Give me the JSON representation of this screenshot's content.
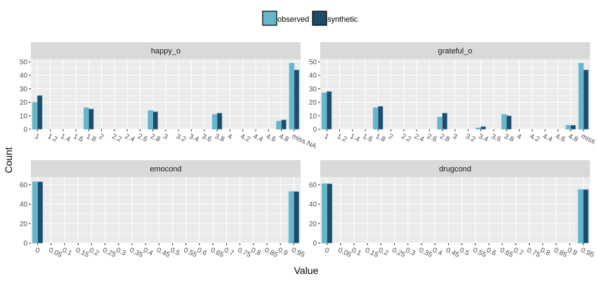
{
  "colors": {
    "observed": "#67b7cc",
    "synthetic": "#1f4a6a",
    "panel_bg": "#ebebeb",
    "strip_bg": "#d9d9d9",
    "grid": "#ffffff"
  },
  "legend": {
    "position": "top",
    "items": [
      {
        "label": "observed",
        "color_key": "observed"
      },
      {
        "label": "synthetic",
        "color_key": "synthetic"
      }
    ]
  },
  "axis_titles": {
    "x": "Value",
    "y": "Count"
  },
  "chart_data": [
    {
      "type": "bar",
      "title": "happy_o",
      "categories": [
        "1",
        "1.2",
        "1.4",
        "1.6",
        "1.8",
        "2",
        "2.2",
        "2.4",
        "2.6",
        "2.8",
        "3",
        "3.2",
        "3.4",
        "3.6",
        "3.8",
        "4",
        "4.2",
        "4.4",
        "4.6",
        "4.8",
        "miss.NA"
      ],
      "series": [
        {
          "name": "observed",
          "values": [
            20,
            0,
            0,
            0,
            16,
            0,
            0,
            0,
            0,
            14,
            0,
            0,
            0,
            0,
            11,
            0,
            0,
            0,
            0,
            6,
            49
          ]
        },
        {
          "name": "synthetic",
          "values": [
            25,
            0,
            0,
            0,
            15,
            0,
            0,
            0,
            0,
            13,
            0,
            0,
            0,
            0,
            12,
            0,
            0,
            0,
            0,
            7,
            44
          ]
        }
      ],
      "ylim": [
        0,
        50
      ],
      "yticks": [
        0,
        10,
        20,
        30,
        40,
        50
      ]
    },
    {
      "type": "bar",
      "title": "grateful_o",
      "categories": [
        "1",
        "1.2",
        "1.4",
        "1.6",
        "1.8",
        "2",
        "2.2",
        "2.4",
        "2.6",
        "2.8",
        "3",
        "3.2",
        "3.4",
        "3.6",
        "3.8",
        "4",
        "4.2",
        "4.4",
        "4.6",
        "4.8",
        "miss.NA"
      ],
      "category_tick_labels": [
        "1",
        "1.2",
        "1.4",
        "1.6",
        "1.8",
        "2",
        "2.2",
        "2.4",
        "2.6",
        "2.8",
        "3",
        "3.2",
        "3.4",
        "3.6",
        "3.8",
        "4",
        "4.2",
        "4.4",
        "4.6",
        "4.8",
        "miss"
      ],
      "series": [
        {
          "name": "observed",
          "values": [
            27,
            0,
            0,
            0,
            16,
            0,
            0,
            0,
            0,
            9,
            0,
            0,
            1,
            0,
            11,
            0,
            0,
            0,
            0,
            3,
            49
          ]
        },
        {
          "name": "synthetic",
          "values": [
            28,
            0,
            0,
            0,
            17,
            0,
            0,
            0,
            0,
            12,
            0,
            0,
            2,
            0,
            10,
            0,
            0,
            0,
            0,
            3,
            44
          ]
        }
      ],
      "ylim": [
        0,
        50
      ],
      "yticks": [
        0,
        10,
        20,
        30,
        40,
        50
      ]
    },
    {
      "type": "bar",
      "title": "emocond",
      "categories": [
        "0",
        "0.05",
        "0.1",
        "0.15",
        "0.2",
        "0.25",
        "0.3",
        "0.35",
        "0.4",
        "0.45",
        "0.5",
        "0.55",
        "0.6",
        "0.65",
        "0.7",
        "0.75",
        "0.8",
        "0.85",
        "0.9",
        "0.95"
      ],
      "series": [
        {
          "name": "observed",
          "values": [
            63,
            0,
            0,
            0,
            0,
            0,
            0,
            0,
            0,
            0,
            0,
            0,
            0,
            0,
            0,
            0,
            0,
            0,
            0,
            53
          ]
        },
        {
          "name": "synthetic",
          "values": [
            63,
            0,
            0,
            0,
            0,
            0,
            0,
            0,
            0,
            0,
            0,
            0,
            0,
            0,
            0,
            0,
            0,
            0,
            0,
            53
          ]
        }
      ],
      "ylim": [
        0,
        65
      ],
      "yticks": [
        0,
        20,
        40,
        60
      ]
    },
    {
      "type": "bar",
      "title": "drugcond",
      "categories": [
        "0",
        "0.05",
        "0.1",
        "0.15",
        "0.2",
        "0.25",
        "0.3",
        "0.35",
        "0.4",
        "0.45",
        "0.5",
        "0.55",
        "0.6",
        "0.65",
        "0.7",
        "0.75",
        "0.8",
        "0.85",
        "0.9",
        "0.95"
      ],
      "series": [
        {
          "name": "observed",
          "values": [
            61,
            0,
            0,
            0,
            0,
            0,
            0,
            0,
            0,
            0,
            0,
            0,
            0,
            0,
            0,
            0,
            0,
            0,
            0,
            55
          ]
        },
        {
          "name": "synthetic",
          "values": [
            61,
            0,
            0,
            0,
            0,
            0,
            0,
            0,
            0,
            0,
            0,
            0,
            0,
            0,
            0,
            0,
            0,
            0,
            0,
            55
          ]
        }
      ],
      "ylim": [
        0,
        65
      ],
      "yticks": [
        0,
        20,
        40,
        60
      ]
    }
  ]
}
